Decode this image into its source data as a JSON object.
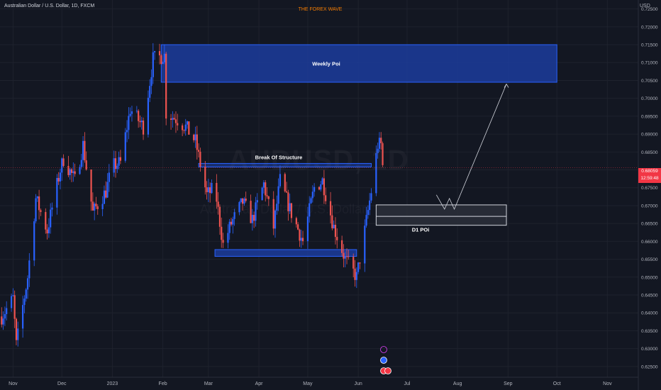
{
  "header": {
    "symbol_line": "Australian Dollar / U.S. Dollar, 1D, FXCM",
    "brand": "THE FOREX WAVE",
    "currency": "USD"
  },
  "watermark": {
    "ticker": "AUDUSD, 1D",
    "name": "Australian Dollar / U.S. Dollar"
  },
  "last_price": {
    "value": "0.68059",
    "countdown": "12:59:48"
  },
  "colors": {
    "background": "#131722",
    "up": "#2962ff",
    "down": "#ef5350",
    "zone": "#1c3c9c",
    "zone_border": "#2962ff",
    "d1_zone": "#2a2e39",
    "price_line": "#f23645"
  },
  "chart_data": {
    "type": "candlestick",
    "title": "Australian Dollar / U.S. Dollar, 1D, FXCM",
    "ylabel": "USD",
    "ylim": [
      0.622,
      0.7275
    ],
    "yticks": [
      0.625,
      0.63,
      0.635,
      0.64,
      0.645,
      0.65,
      0.655,
      0.66,
      0.665,
      0.67,
      0.675,
      0.68,
      0.685,
      0.69,
      0.695,
      0.7,
      0.705,
      0.71,
      0.715,
      0.72,
      0.725
    ],
    "ytick_labels": [
      "0.62500",
      "0.63000",
      "0.63500",
      "0.64000",
      "0.64500",
      "0.65000",
      "0.65500",
      "0.66000",
      "0.66500",
      "0.67000",
      "0.67500",
      "0.68000",
      "0.68500",
      "0.69000",
      "0.69500",
      "0.70000",
      "0.70500",
      "0.71000",
      "0.71500",
      "0.72000",
      "0.72500"
    ],
    "xlim": [
      "2022-10-24",
      "2023-11-20"
    ],
    "xticks": [
      {
        "date": "2022-11-01",
        "label": "Nov"
      },
      {
        "date": "2022-12-01",
        "label": "Dec"
      },
      {
        "date": "2023-01-01",
        "label": "2023"
      },
      {
        "date": "2023-02-01",
        "label": "Feb"
      },
      {
        "date": "2023-03-01",
        "label": "Mar"
      },
      {
        "date": "2023-04-01",
        "label": "Apr"
      },
      {
        "date": "2023-05-01",
        "label": "May"
      },
      {
        "date": "2023-06-01",
        "label": "Jun"
      },
      {
        "date": "2023-07-01",
        "label": "Jul"
      },
      {
        "date": "2023-08-01",
        "label": "Aug"
      },
      {
        "date": "2023-09-01",
        "label": "Sep"
      },
      {
        "date": "2023-10-01",
        "label": "Oct"
      },
      {
        "date": "2023-11-01",
        "label": "Nov"
      }
    ],
    "price_path": {
      "start_date": "2022-10-25",
      "end_date": "2023-06-16",
      "waypoints": [
        [
          "2022-10-25",
          0.639
        ],
        [
          "2022-11-01",
          0.644
        ],
        [
          "2022-11-03",
          0.631
        ],
        [
          "2022-11-10",
          0.65
        ],
        [
          "2022-11-15",
          0.672
        ],
        [
          "2022-11-22",
          0.663
        ],
        [
          "2022-11-30",
          0.68
        ],
        [
          "2022-12-02",
          0.683
        ],
        [
          "2022-12-09",
          0.677
        ],
        [
          "2022-12-14",
          0.687
        ],
        [
          "2022-12-20",
          0.668
        ],
        [
          "2022-12-28",
          0.674
        ],
        [
          "2023-01-01",
          0.681
        ],
        [
          "2023-01-06",
          0.682
        ],
        [
          "2023-01-12",
          0.697
        ],
        [
          "2023-01-20",
          0.692
        ],
        [
          "2023-01-26",
          0.711
        ],
        [
          "2023-02-02",
          0.712
        ],
        [
          "2023-02-03",
          0.696
        ],
        [
          "2023-02-10",
          0.694
        ],
        [
          "2023-02-15",
          0.692
        ],
        [
          "2023-02-21",
          0.688
        ],
        [
          "2023-02-28",
          0.673
        ],
        [
          "2023-03-05",
          0.675
        ],
        [
          "2023-03-10",
          0.659
        ],
        [
          "2023-03-15",
          0.665
        ],
        [
          "2023-03-22",
          0.671
        ],
        [
          "2023-03-28",
          0.666
        ],
        [
          "2023-04-04",
          0.676
        ],
        [
          "2023-04-10",
          0.664
        ],
        [
          "2023-04-14",
          0.677
        ],
        [
          "2023-04-20",
          0.669
        ],
        [
          "2023-04-28",
          0.66
        ],
        [
          "2023-05-05",
          0.675
        ],
        [
          "2023-05-10",
          0.677
        ],
        [
          "2023-05-17",
          0.664
        ],
        [
          "2023-05-24",
          0.655
        ],
        [
          "2023-05-31",
          0.65
        ],
        [
          "2023-06-05",
          0.663
        ],
        [
          "2023-06-09",
          0.674
        ],
        [
          "2023-06-13",
          0.687
        ],
        [
          "2023-06-15",
          0.687
        ],
        [
          "2023-06-16",
          0.681
        ]
      ]
    },
    "zones": [
      {
        "label": "Weekly Poi",
        "from": "2023-01-31",
        "to": "2023-10-01",
        "high": 0.715,
        "low": 0.7045
      },
      {
        "label": "Break Of Structure",
        "from": "2023-02-23",
        "to": "2023-06-09",
        "high": 0.6818,
        "low": 0.6808
      },
      {
        "label": "",
        "from": "2023-03-05",
        "to": "2023-05-31",
        "high": 0.6577,
        "low": 0.6558
      },
      {
        "label": "D1 POi",
        "from": "2023-06-12",
        "to": "2023-08-31",
        "high": 0.6702,
        "low": 0.6645,
        "mid": 0.667
      }
    ],
    "projection": [
      [
        "2023-07-19",
        0.673
      ],
      [
        "2023-07-24",
        0.669
      ],
      [
        "2023-07-27",
        0.672
      ],
      [
        "2023-07-30",
        0.669
      ],
      [
        "2023-08-31",
        0.704
      ]
    ]
  }
}
